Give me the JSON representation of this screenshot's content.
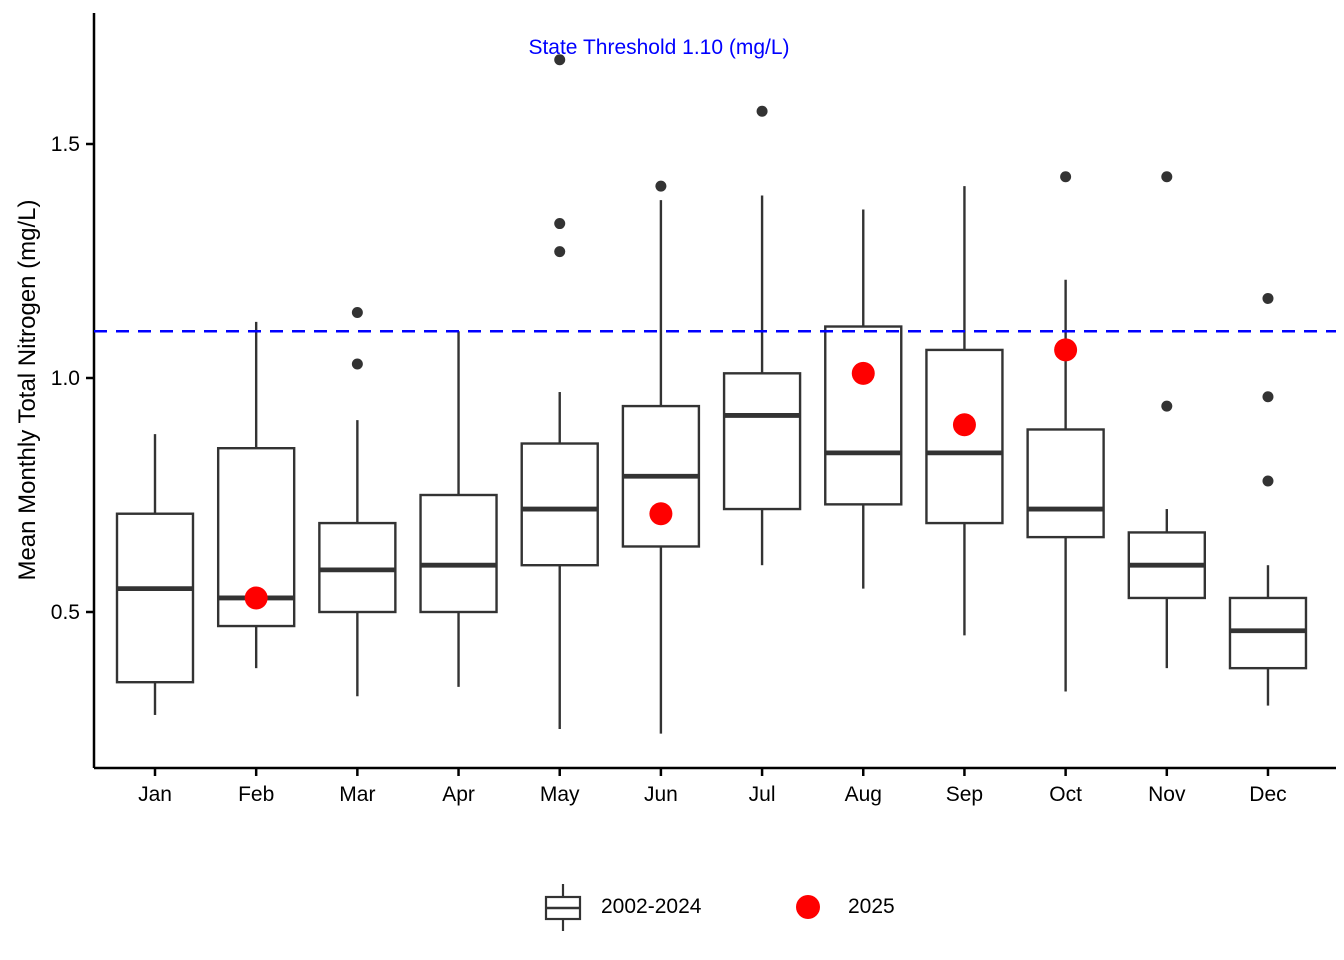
{
  "annotation": {
    "threshold_label": "State Threshold 1.10 (mg/L)"
  },
  "y_axis": {
    "title": "Mean Monthly Total Nitrogen (mg/L)",
    "tick_labels": [
      "0.5",
      "1.0",
      "1.5"
    ],
    "tick_values": [
      0.5,
      1.0,
      1.5
    ]
  },
  "legend": {
    "box_label": "2002-2024",
    "dot_label": "2025"
  },
  "colors": {
    "threshold_blue": "#0000FF",
    "box_stroke": "#333333",
    "outlier_fill": "#333333",
    "dot_2025": "#FF0000",
    "axis_black": "#000000",
    "background": "#FFFFFF"
  },
  "chart_data": {
    "type": "boxplot",
    "title": "",
    "xlabel": "",
    "ylabel": "Mean Monthly Total Nitrogen (mg/L)",
    "ylim": [
      0.17,
      1.78
    ],
    "yticks": [
      0.5,
      1.0,
      1.5
    ],
    "grid": false,
    "legend_position": "bottom",
    "threshold": {
      "value": 1.1,
      "label": "State Threshold 1.10 (mg/L)"
    },
    "categories": [
      "Jan",
      "Feb",
      "Mar",
      "Apr",
      "May",
      "Jun",
      "Jul",
      "Aug",
      "Sep",
      "Oct",
      "Nov",
      "Dec"
    ],
    "series": [
      {
        "name": "2002-2024",
        "kind": "box",
        "boxes": [
          {
            "month": "Jan",
            "whisker_low": 0.28,
            "q1": 0.35,
            "median": 0.55,
            "q3": 0.71,
            "whisker_high": 0.88,
            "outliers": []
          },
          {
            "month": "Feb",
            "whisker_low": 0.38,
            "q1": 0.47,
            "median": 0.53,
            "q3": 0.85,
            "whisker_high": 1.12,
            "outliers": []
          },
          {
            "month": "Mar",
            "whisker_low": 0.32,
            "q1": 0.5,
            "median": 0.59,
            "q3": 0.69,
            "whisker_high": 0.91,
            "outliers": [
              1.14,
              1.03
            ]
          },
          {
            "month": "Apr",
            "whisker_low": 0.34,
            "q1": 0.5,
            "median": 0.6,
            "q3": 0.75,
            "whisker_high": 1.1,
            "outliers": []
          },
          {
            "month": "May",
            "whisker_low": 0.25,
            "q1": 0.6,
            "median": 0.72,
            "q3": 0.86,
            "whisker_high": 0.97,
            "outliers": [
              1.68,
              1.33,
              1.27
            ]
          },
          {
            "month": "Jun",
            "whisker_low": 0.24,
            "q1": 0.64,
            "median": 0.79,
            "q3": 0.94,
            "whisker_high": 1.38,
            "outliers": [
              1.41
            ]
          },
          {
            "month": "Jul",
            "whisker_low": 0.6,
            "q1": 0.72,
            "median": 0.92,
            "q3": 1.01,
            "whisker_high": 1.39,
            "outliers": [
              1.57
            ]
          },
          {
            "month": "Aug",
            "whisker_low": 0.55,
            "q1": 0.73,
            "median": 0.84,
            "q3": 1.11,
            "whisker_high": 1.36,
            "outliers": []
          },
          {
            "month": "Sep",
            "whisker_low": 0.45,
            "q1": 0.69,
            "median": 0.84,
            "q3": 1.06,
            "whisker_high": 1.41,
            "outliers": []
          },
          {
            "month": "Oct",
            "whisker_low": 0.33,
            "q1": 0.66,
            "median": 0.72,
            "q3": 0.89,
            "whisker_high": 1.21,
            "outliers": [
              1.43
            ]
          },
          {
            "month": "Nov",
            "whisker_low": 0.38,
            "q1": 0.53,
            "median": 0.6,
            "q3": 0.67,
            "whisker_high": 0.72,
            "outliers": [
              1.43,
              0.94
            ]
          },
          {
            "month": "Dec",
            "whisker_low": 0.3,
            "q1": 0.38,
            "median": 0.46,
            "q3": 0.53,
            "whisker_high": 0.6,
            "outliers": [
              1.17,
              0.96,
              0.78
            ]
          }
        ]
      },
      {
        "name": "2025",
        "kind": "points",
        "points": [
          {
            "month": "Feb",
            "value": 0.53
          },
          {
            "month": "Jun",
            "value": 0.71
          },
          {
            "month": "Aug",
            "value": 1.01
          },
          {
            "month": "Sep",
            "value": 0.9
          },
          {
            "month": "Oct",
            "value": 1.06
          }
        ]
      }
    ]
  }
}
